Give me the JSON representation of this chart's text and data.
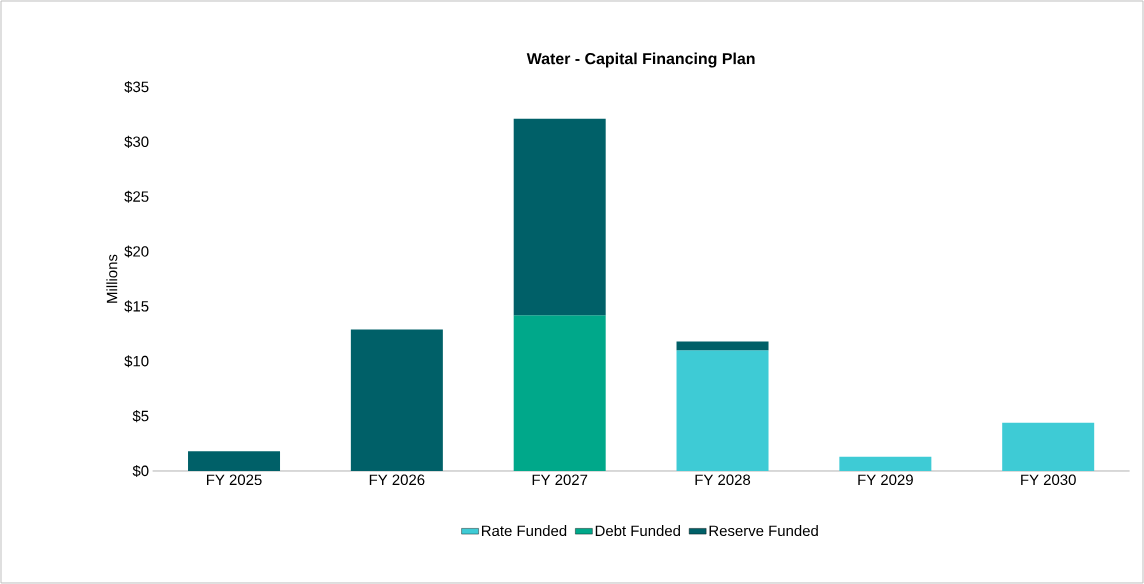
{
  "chart_data": {
    "type": "bar",
    "title": "Water - Capital Financing  Plan",
    "ylabel": "Millions",
    "categories": [
      "FY 2025",
      "FY 2026",
      "FY 2027",
      "FY 2028",
      "FY 2029",
      "FY 2030"
    ],
    "stacked": true,
    "legend": "bottom",
    "grid": false,
    "ylim": [
      0,
      35
    ],
    "yticks": [
      {
        "value": 0,
        "label": "$0"
      },
      {
        "value": 5,
        "label": "$5"
      },
      {
        "value": 10,
        "label": "$10"
      },
      {
        "value": 15,
        "label": "$15"
      },
      {
        "value": 20,
        "label": "$20"
      },
      {
        "value": 25,
        "label": "$25"
      },
      {
        "value": 30,
        "label": "$30"
      },
      {
        "value": 35,
        "label": "$35"
      }
    ],
    "series": [
      {
        "name": "Rate Funded",
        "color": "#3ecbd5",
        "values": [
          null,
          null,
          null,
          11.0,
          1.3,
          4.4
        ]
      },
      {
        "name": "Debt Funded",
        "color": "#00a88a",
        "values": [
          null,
          null,
          14.2,
          null,
          null,
          null
        ]
      },
      {
        "name": "Reserve Funded",
        "color": "#006068",
        "values": [
          1.8,
          12.9,
          17.9,
          0.8,
          null,
          null
        ]
      }
    ]
  }
}
